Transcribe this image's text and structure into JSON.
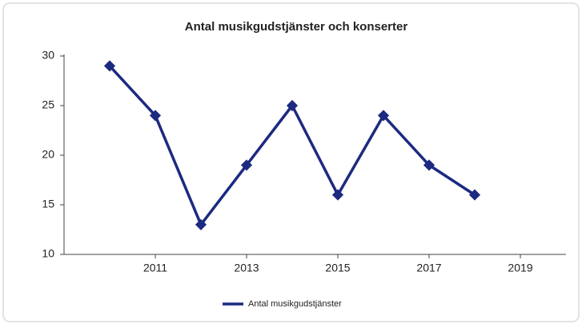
{
  "chart_data": {
    "type": "line",
    "title": "Antal musikgudstjänster och konserter",
    "x": [
      2010,
      2011,
      2012,
      2013,
      2014,
      2015,
      2016,
      2017,
      2018
    ],
    "series": [
      {
        "name": "Antal musikgudstjänster",
        "color": "#1c2a80",
        "values": [
          29,
          24,
          13,
          19,
          25,
          16,
          24,
          19,
          16
        ]
      }
    ],
    "xlim": [
      2009,
      2020
    ],
    "xticks": [
      2011,
      2013,
      2015,
      2017,
      2019
    ],
    "ylim": [
      10,
      30
    ],
    "yticks": [
      10,
      15,
      20,
      25,
      30
    ],
    "grid": false,
    "legend": "bottom"
  }
}
